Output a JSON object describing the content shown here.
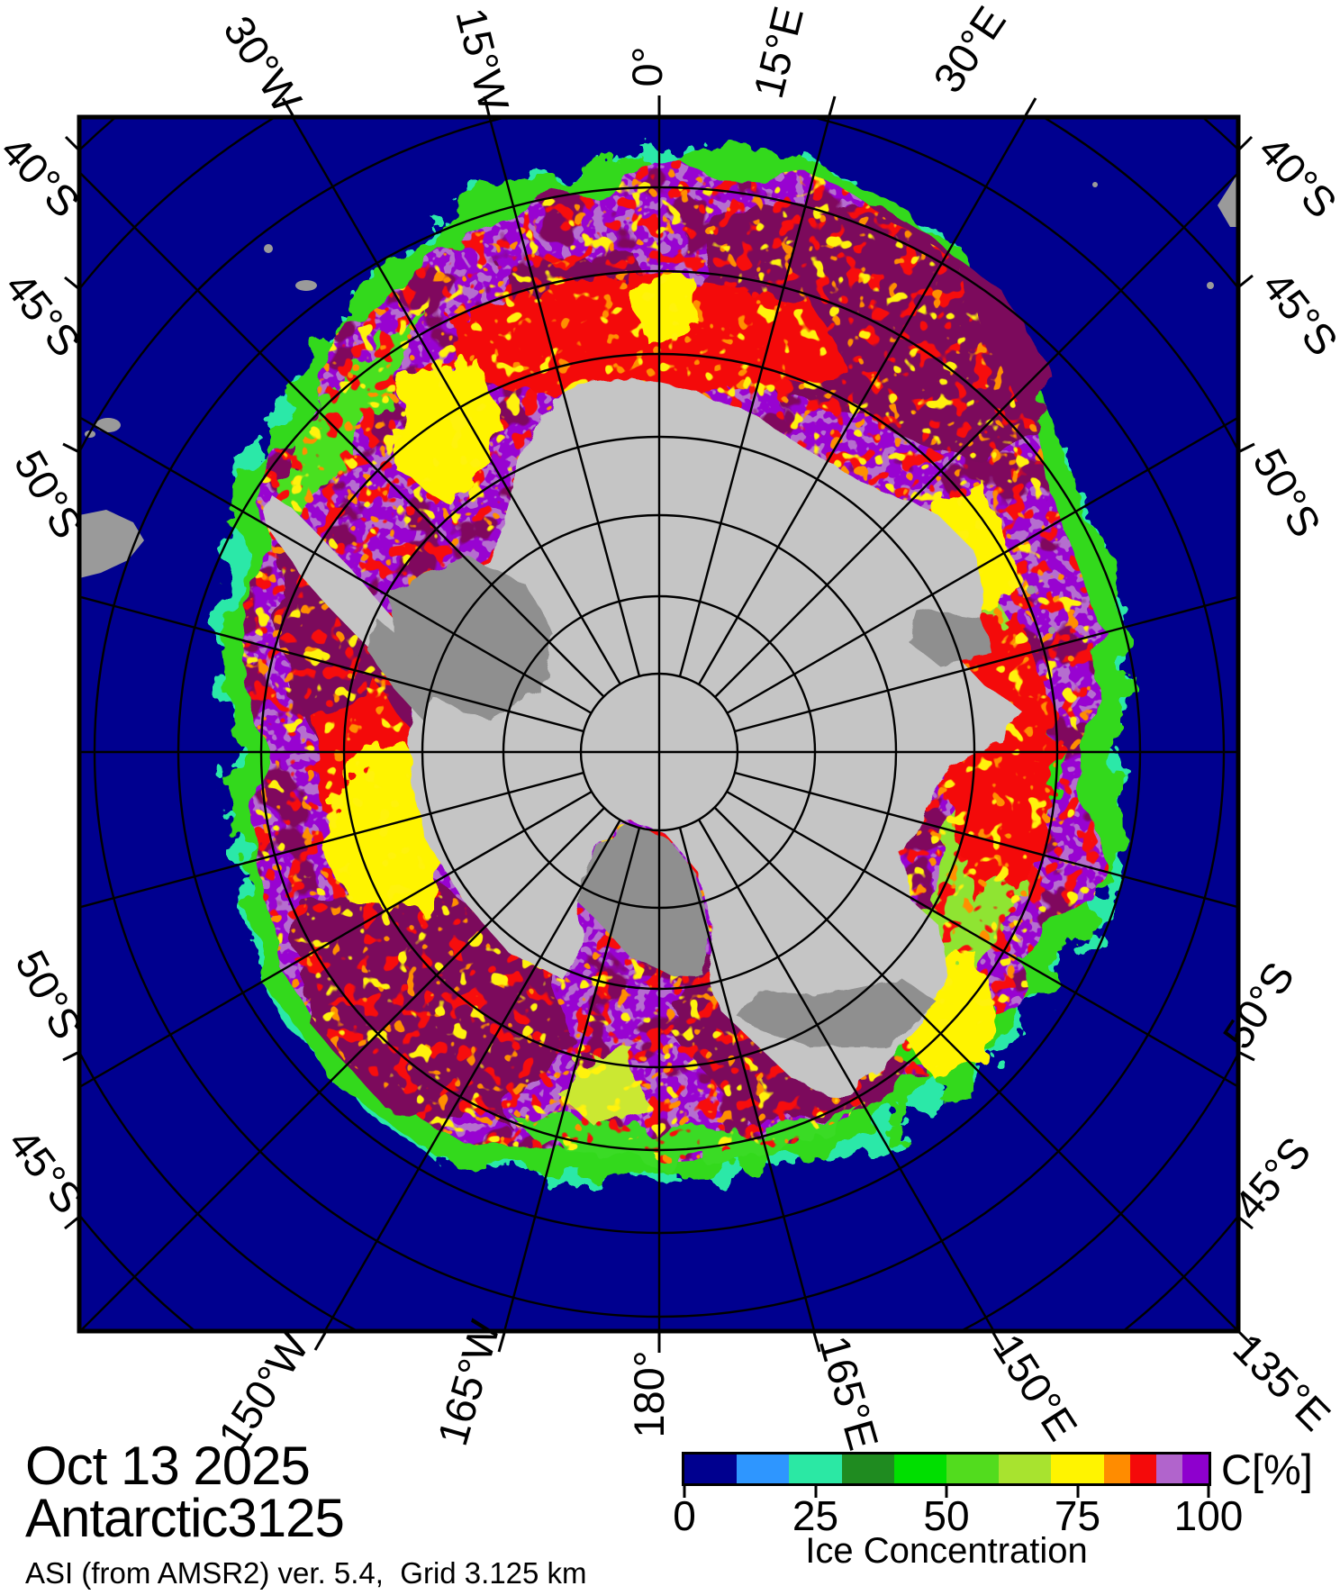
{
  "figure": {
    "date": "Oct 13 2025",
    "region": "Antarctic3125",
    "source_line": "ASI (from AMSR2) ver. 5.4,  Grid 3.125 km"
  },
  "colorbar": {
    "unit_label": "C[%]",
    "caption": "Ice Concentration",
    "tick_labels": [
      "0",
      "25",
      "50",
      "75",
      "100"
    ],
    "segments": [
      {
        "color": "#00008F",
        "span": 10
      },
      {
        "color": "#2E96FF",
        "span": 10
      },
      {
        "color": "#2BE8A4",
        "span": 10
      },
      {
        "color": "#1F8B20",
        "span": 10
      },
      {
        "color": "#00DF00",
        "span": 10
      },
      {
        "color": "#52DC1E",
        "span": 10
      },
      {
        "color": "#A8E32F",
        "span": 10
      },
      {
        "color": "#FFF400",
        "span": 10
      },
      {
        "color": "#FF8C00",
        "span": 5
      },
      {
        "color": "#F50A0A",
        "span": 5
      },
      {
        "color": "#B164CC",
        "span": 5
      },
      {
        "color": "#8E00CE",
        "span": 5
      }
    ]
  },
  "map": {
    "labels": {
      "top": [
        "30°W",
        "15°W",
        "0°",
        "15°E",
        "30°E"
      ],
      "bottom": [
        "150°W",
        "165°W",
        "180°",
        "165°E",
        "150°E",
        "135°E"
      ],
      "left": [
        "40°S",
        "45°S",
        "50°S",
        "50°S",
        "45°S"
      ],
      "right": [
        "40°S",
        "45°S",
        "50°S",
        "50°S",
        "45°S"
      ]
    },
    "colors": {
      "ocean": "#00008F",
      "land": "#C5C5C5",
      "ice_shelf": "#8F8F8F",
      "remote_land": "#9A9A9A",
      "ice_high": "#9803D1",
      "ice_max": "#7C0A5C",
      "ice_fringe_green": "#33D91C",
      "graticule": "#000000"
    }
  }
}
